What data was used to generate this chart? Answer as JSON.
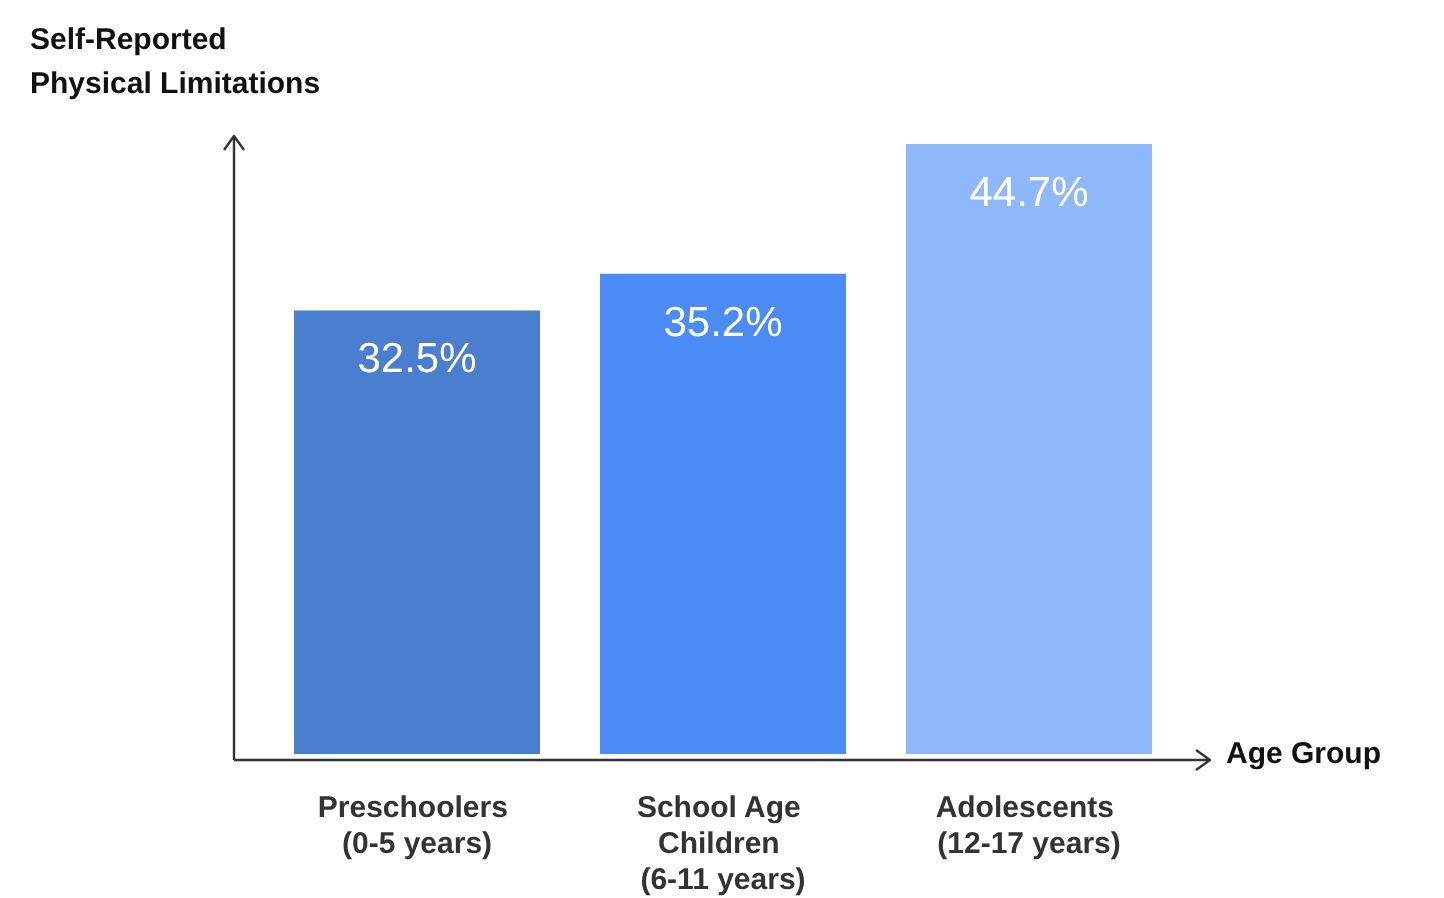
{
  "chart_data": {
    "type": "bar",
    "ylabel": "Self-Reported Physical Limitations",
    "xlabel": "Age Group",
    "categories": [
      "Preschoolers (0-5 years)",
      "School Age Children (6-11 years)",
      "Adolescents (12-17 years)"
    ],
    "values": [
      32.5,
      35.2,
      44.7
    ],
    "colors": [
      "#4a7fcf",
      "#4b8bf5",
      "#8fb8fb"
    ],
    "value_labels": [
      "32.5%",
      "35.2%",
      "44.7%"
    ]
  }
}
